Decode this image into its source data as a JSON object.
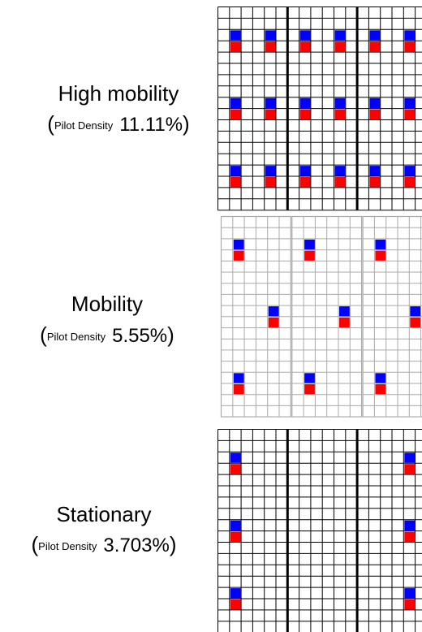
{
  "brackets": [
    "(",
    ")"
  ],
  "panels": [
    {
      "title": "High mobility",
      "label": "Pilot Density",
      "density": "11.11%"
    },
    {
      "title": "Mobility",
      "label": "Pilot Density",
      "density": "5.55%"
    },
    {
      "title": "Stationary",
      "label": "Pilot Density",
      "density": "3.703%"
    }
  ]
}
